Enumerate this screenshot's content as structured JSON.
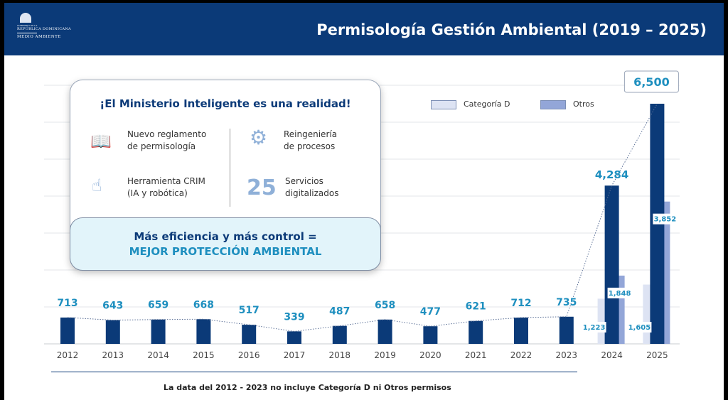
{
  "header": {
    "logo_text": [
      "GOBIERNO DE LA",
      "REPÚBLICA DOMINICANA",
      "MEDIO AMBIENTE"
    ],
    "title": "Permisología Gestión Ambiental (2019 – 2025)"
  },
  "card": {
    "title": "¡El Ministerio Inteligente es una realidad!",
    "features": [
      {
        "icon": "book-icon",
        "line1": "Nuevo reglamento",
        "line2": "de permisología"
      },
      {
        "icon": "gears-icon",
        "line1": "Reingeniería",
        "line2": "de procesos"
      },
      {
        "icon": "touch-robot-icon",
        "line1": "Herramienta CRIM",
        "line2": "(IA y robótica)"
      },
      {
        "icon": "number",
        "number": "25",
        "line1": "Servicios",
        "line2": "digitalizados"
      }
    ],
    "banner_line1": "Más eficiencia y más control =",
    "banner_line2": "MEJOR PROTECCIÓN AMBIENTAL"
  },
  "footnote": "La data del 2012 - 2023 no incluye Categoría D ni Otros permisos",
  "chart_data": {
    "type": "bar",
    "categories": [
      "2012",
      "2013",
      "2014",
      "2015",
      "2016",
      "2017",
      "2018",
      "2019",
      "2020",
      "2021",
      "2022",
      "2023",
      "2024",
      "2025"
    ],
    "series": [
      {
        "values": [
          713,
          643,
          659,
          668,
          517,
          339,
          487,
          658,
          477,
          621,
          712,
          735,
          4284,
          6500
        ],
        "color": "#0b3a78"
      },
      {
        "name": "Categoría D",
        "values": [
          null,
          null,
          null,
          null,
          null,
          null,
          null,
          null,
          null,
          null,
          null,
          null,
          1223,
          1605
        ],
        "color": "#dde3f3"
      },
      {
        "name": "Otros",
        "values": [
          null,
          null,
          null,
          null,
          null,
          null,
          null,
          null,
          null,
          null,
          null,
          null,
          1848,
          3852
        ],
        "color": "#93a6d8"
      }
    ],
    "ylim": [
      0,
      7000
    ],
    "grid": true,
    "trendline": "dotted",
    "legend": "top-right",
    "label_color": "#1e8fbf"
  }
}
